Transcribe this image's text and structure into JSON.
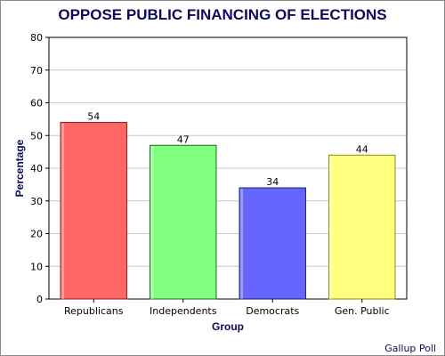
{
  "chart_data": {
    "type": "bar",
    "title": "OPPOSE PUBLIC FINANCING OF ELECTIONS",
    "xlabel": "Group",
    "ylabel": "Percentage",
    "categories": [
      "Republicans",
      "Independents",
      "Democrats",
      "Gen. Public"
    ],
    "values": [
      54,
      47,
      34,
      44
    ],
    "value_labels": [
      "54",
      "47",
      "34",
      "44"
    ],
    "ylim": [
      0,
      80
    ],
    "yticks": [
      0,
      10,
      20,
      30,
      40,
      50,
      60,
      70,
      80
    ],
    "ytick_labels": [
      "0",
      "10",
      "20",
      "30",
      "40",
      "50",
      "60",
      "70",
      "80"
    ],
    "bar_colors": [
      "#ff6666",
      "#80ff80",
      "#6666ff",
      "#ffff80"
    ],
    "bar_edge_colors": [
      "#8b1a1a",
      "#1a6b1a",
      "#1a1a6b",
      "#8a8a1a"
    ],
    "grid": true,
    "legend": false,
    "source": "Gallup Poll"
  },
  "colors": {
    "title": "#0b0b5c",
    "grid": "#c8c8c8",
    "axis": "#000000",
    "frame": "#8a8a8a"
  }
}
